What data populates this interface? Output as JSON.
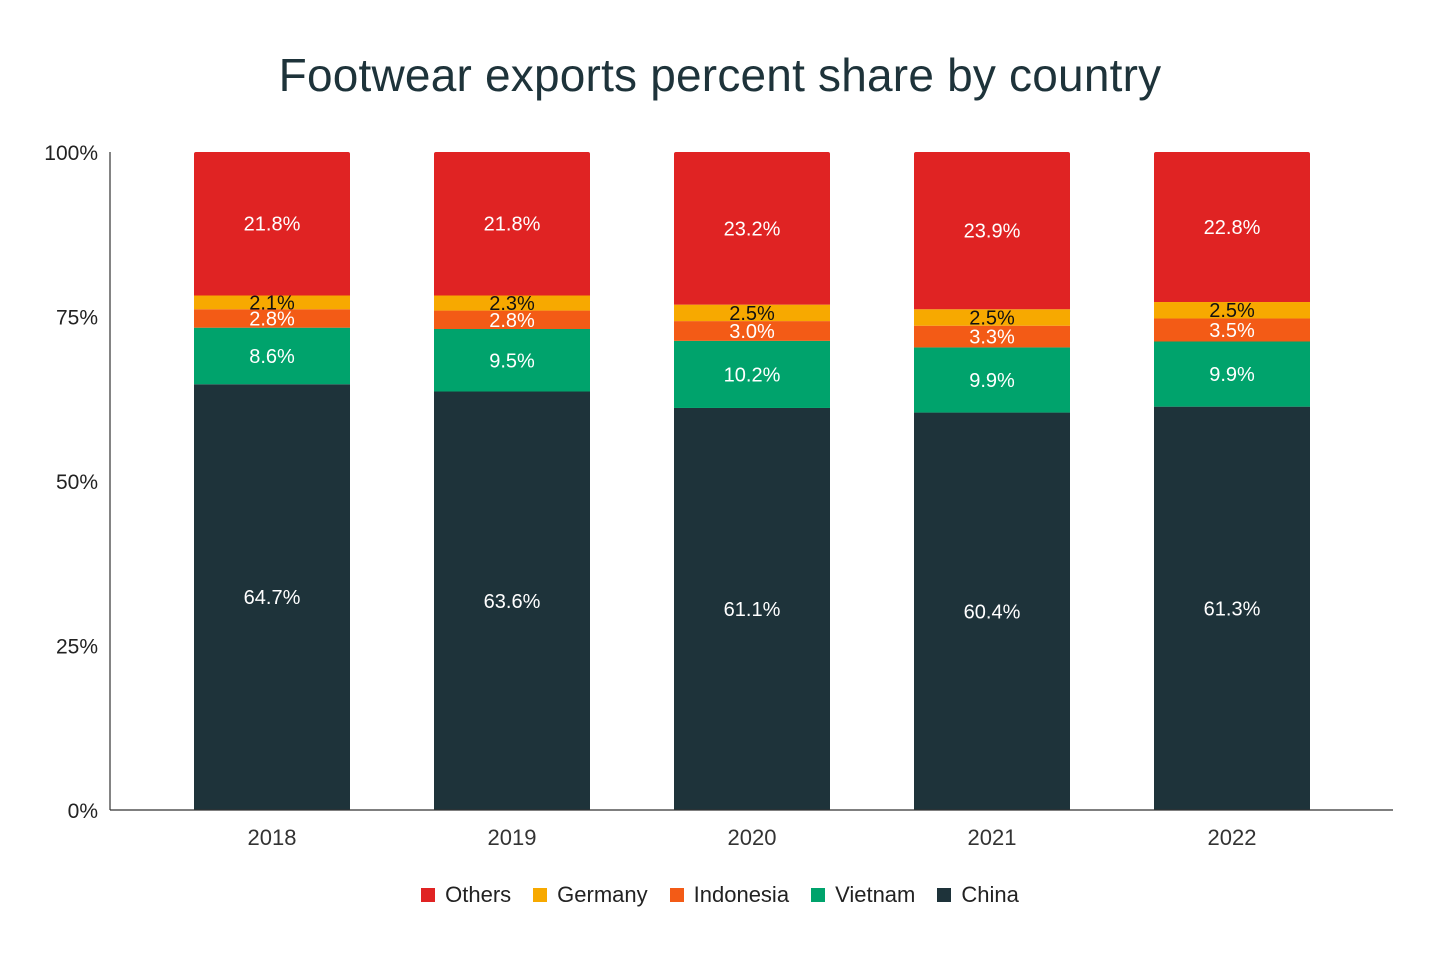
{
  "chart_data": {
    "type": "bar",
    "stacked": true,
    "title": "Footwear exports percent share by country",
    "xlabel": "",
    "ylabel": "",
    "ylim": [
      0,
      100
    ],
    "y_ticks": [
      "0%",
      "25%",
      "50%",
      "75%",
      "100%"
    ],
    "y_tick_values": [
      0,
      25,
      50,
      75,
      100
    ],
    "categories": [
      "2018",
      "2019",
      "2020",
      "2021",
      "2022"
    ],
    "series": [
      {
        "name": "China",
        "color": "#1e333a",
        "label_color": "#ffffff",
        "values": [
          64.7,
          63.6,
          61.1,
          60.4,
          61.3
        ],
        "labels": [
          "64.7%",
          "63.6%",
          "61.1%",
          "60.4%",
          "61.3%"
        ]
      },
      {
        "name": "Vietnam",
        "color": "#00a36c",
        "label_color": "#ffffff",
        "values": [
          8.6,
          9.5,
          10.2,
          9.9,
          9.9
        ],
        "labels": [
          "8.6%",
          "9.5%",
          "10.2%",
          "9.9%",
          "9.9%"
        ]
      },
      {
        "name": "Indonesia",
        "color": "#f35b16",
        "label_color": "#ffffff",
        "values": [
          2.8,
          2.8,
          3.0,
          3.3,
          3.5
        ],
        "labels": [
          "2.8%",
          "2.8%",
          "3.0%",
          "3.3%",
          "3.5%"
        ]
      },
      {
        "name": "Germany",
        "color": "#f7a900",
        "label_color": "#111111",
        "values": [
          2.1,
          2.3,
          2.5,
          2.5,
          2.5
        ],
        "labels": [
          "2.1%",
          "2.3%",
          "2.5%",
          "2.5%",
          "2.5%"
        ]
      },
      {
        "name": "Others",
        "color": "#e02323",
        "label_color": "#ffffff",
        "values": [
          21.8,
          21.8,
          23.2,
          23.9,
          22.8
        ],
        "labels": [
          "21.8%",
          "21.8%",
          "23.2%",
          "23.9%",
          "22.8%"
        ]
      }
    ],
    "legend": {
      "position": "bottom",
      "order": [
        "Others",
        "Germany",
        "Indonesia",
        "Vietnam",
        "China"
      ]
    },
    "grid": false
  }
}
